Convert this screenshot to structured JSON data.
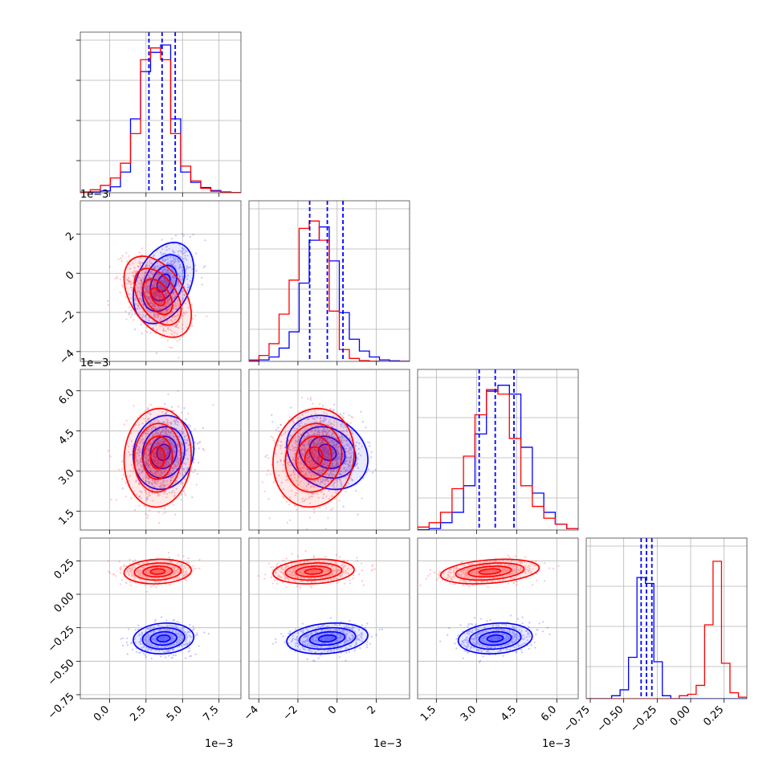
{
  "chart_data": {
    "type": "scatter",
    "colors": {
      "blue": "#0000ff",
      "red": "#ff0000"
    },
    "grid": true,
    "offset_texts": {
      "p0": "1e−3",
      "p1": "1e−3",
      "p2": "1e−3"
    },
    "params": [
      {
        "range": [
          -0.002,
          0.009
        ],
        "ticks": [
          0.0,
          0.0025,
          0.005,
          0.0075
        ],
        "tick_labels": [
          "0.0",
          "2.5",
          "5.0",
          "7.5"
        ]
      },
      {
        "range": [
          -0.0045,
          0.0037
        ],
        "ticks": [
          -0.004,
          -0.002,
          0.0,
          0.002
        ],
        "tick_labels": [
          "−4",
          "−2",
          "0",
          "2"
        ]
      },
      {
        "range": [
          0.0008,
          0.0068
        ],
        "ticks": [
          0.0015,
          0.003,
          0.0045,
          0.006
        ],
        "tick_labels": [
          "1.5",
          "3.0",
          "4.5",
          "6.0"
        ]
      },
      {
        "range": [
          -0.78,
          0.42
        ],
        "ticks": [
          -0.75,
          -0.5,
          -0.25,
          0.0,
          0.25
        ],
        "tick_labels": [
          "−0.75",
          "−0.50",
          "−0.25",
          "0.00",
          "0.25"
        ]
      }
    ],
    "quantiles_blue": [
      [
        0.0027,
        0.0036,
        0.0045
      ],
      [
        -0.0014,
        -0.0005,
        0.0003
      ],
      [
        0.0031,
        0.0037,
        0.0044
      ],
      [
        -0.37,
        -0.33,
        -0.29
      ]
    ],
    "series": [
      {
        "color": "blue",
        "mean": [
          0.0037,
          -0.0005,
          0.0037,
          -0.33
        ],
        "std": [
          0.0009,
          0.0009,
          0.0006,
          0.05
        ],
        "corr": [
          [
            1,
            0.35,
            0.1,
            0.1
          ],
          [
            0.35,
            1,
            -0.2,
            0.2
          ],
          [
            0.1,
            -0.2,
            1,
            0.15
          ],
          [
            0.1,
            0.2,
            0.15,
            1
          ]
        ],
        "hist": [
          [
            0.002,
            0.005,
            0.012,
            0.04,
            0.14,
            0.5,
            0.82,
            0.95,
            1.0,
            0.5,
            0.14,
            0.07,
            0.035,
            0.015,
            0.005,
            0.002
          ],
          [
            0.003,
            0.01,
            0.03,
            0.09,
            0.2,
            0.53,
            0.82,
            0.91,
            0.68,
            0.33,
            0.15,
            0.07,
            0.03,
            0.01,
            0.004,
            0.001
          ],
          [
            0.002,
            0.01,
            0.05,
            0.12,
            0.3,
            0.65,
            0.94,
            0.98,
            0.92,
            0.56,
            0.25,
            0.12,
            0.04,
            0.01
          ],
          [
            0,
            0,
            0,
            0.02,
            0.06,
            0.28,
            0.82,
            0.78,
            0.25,
            0.02,
            0,
            0,
            0,
            0,
            0,
            0,
            0,
            0,
            0
          ]
        ]
      },
      {
        "color": "red",
        "mean": [
          0.0033,
          -0.0012,
          0.0035,
          0.17
        ],
        "std": [
          0.001,
          0.0009,
          0.0008,
          0.04
        ],
        "corr": [
          [
            1,
            -0.45,
            0.05,
            0.1
          ],
          [
            -0.45,
            1,
            0.1,
            0.15
          ],
          [
            0.05,
            0.1,
            1,
            0.3
          ],
          [
            0.1,
            0.15,
            0.3,
            1
          ]
        ],
        "hist": [
          [
            0.005,
            0.02,
            0.05,
            0.1,
            0.2,
            0.4,
            0.9,
            0.98,
            0.9,
            0.4,
            0.18,
            0.08,
            0.03,
            0.01,
            0.005,
            0.002
          ],
          [
            0.01,
            0.04,
            0.12,
            0.32,
            0.55,
            0.9,
            0.95,
            0.82,
            0.34,
            0.08,
            0.02,
            0.005,
            0.001,
            0,
            0,
            0
          ],
          [
            0.02,
            0.05,
            0.12,
            0.28,
            0.5,
            0.78,
            0.95,
            0.92,
            0.62,
            0.3,
            0.16,
            0.08,
            0.04,
            0.01
          ],
          [
            0,
            0,
            0,
            0,
            0,
            0,
            0,
            0,
            0,
            0,
            0,
            0.02,
            0.03,
            0.09,
            0.5,
            0.93,
            0.24,
            0.04,
            0.01
          ]
        ]
      }
    ]
  }
}
